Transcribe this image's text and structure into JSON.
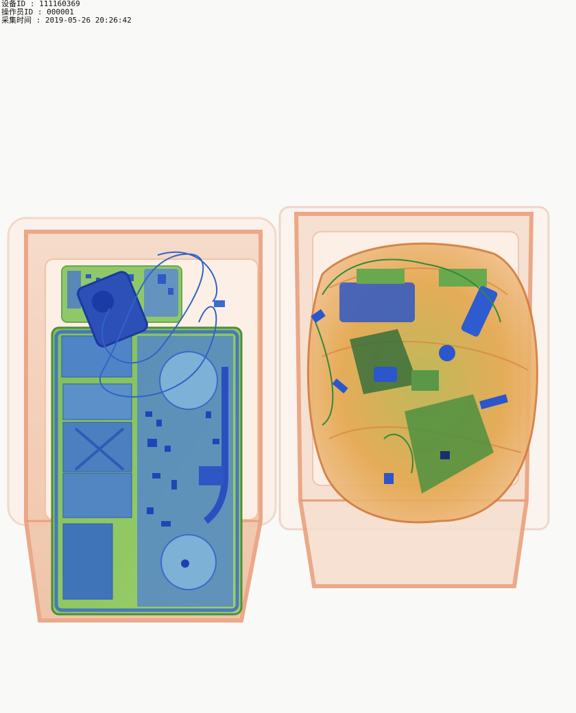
{
  "header": {
    "device_line": "设备ID : 111160369",
    "operator_line": "操作员ID : 000001",
    "time_line": "采集时间 : 2019-05-26 20:26:42"
  },
  "colors": {
    "background": "#f9f9f8",
    "tray_orange": "#e9a37a",
    "organic_orange": "#e8a04a",
    "mixed_green": "#8cc063",
    "metal_blue": "#3b6fd8"
  },
  "scan": {
    "left_tray_contents": "laptop",
    "right_tray_contents": "bag"
  }
}
